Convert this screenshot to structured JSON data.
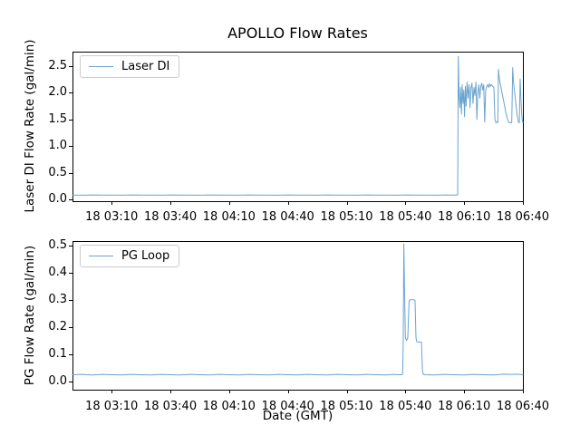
{
  "figure": {
    "title": "APOLLO Flow Rates",
    "xlabel": "Date (GMT)",
    "background": "#ffffff",
    "axis_color": "#000000",
    "line_color": "#6aa3cf"
  },
  "chart_data": [
    {
      "type": "line",
      "subplot": "top",
      "ylabel": "Laser DI Flow Rate (gal/min)",
      "legend": {
        "position": "upper left",
        "entries": [
          "Laser DI"
        ]
      },
      "x_unit": "minutes relative to tick 18 03:10 (GMT)",
      "x_tick_labels": [
        "18 03:10",
        "18 03:40",
        "18 04:10",
        "18 04:40",
        "18 05:10",
        "18 05:40",
        "18 06:10",
        "18 06:40"
      ],
      "x_ticks": [
        0,
        30,
        60,
        90,
        120,
        150,
        180,
        210
      ],
      "xlim": [
        -20,
        210
      ],
      "y_tick_labels": [
        "0.0",
        "0.5",
        "1.0",
        "1.5",
        "2.0",
        "2.5"
      ],
      "y_ticks": [
        0,
        0.5,
        1,
        1.5,
        2,
        2.5
      ],
      "ylim": [
        -0.03,
        2.77
      ],
      "grid": false,
      "series": [
        {
          "name": "Laser DI",
          "points": [
            [
              -20,
              0.085
            ],
            [
              -15,
              0.083
            ],
            [
              -10,
              0.086
            ],
            [
              -5,
              0.084
            ],
            [
              0,
              0.085
            ],
            [
              5,
              0.083
            ],
            [
              10,
              0.086
            ],
            [
              15,
              0.084
            ],
            [
              20,
              0.085
            ],
            [
              25,
              0.083
            ],
            [
              30,
              0.086
            ],
            [
              35,
              0.084
            ],
            [
              40,
              0.085
            ],
            [
              45,
              0.083
            ],
            [
              50,
              0.086
            ],
            [
              55,
              0.084
            ],
            [
              60,
              0.085
            ],
            [
              65,
              0.083
            ],
            [
              70,
              0.086
            ],
            [
              75,
              0.084
            ],
            [
              80,
              0.085
            ],
            [
              85,
              0.083
            ],
            [
              90,
              0.086
            ],
            [
              95,
              0.084
            ],
            [
              100,
              0.085
            ],
            [
              105,
              0.083
            ],
            [
              110,
              0.086
            ],
            [
              115,
              0.084
            ],
            [
              120,
              0.085
            ],
            [
              125,
              0.083
            ],
            [
              130,
              0.086
            ],
            [
              135,
              0.084
            ],
            [
              140,
              0.085
            ],
            [
              145,
              0.083
            ],
            [
              150,
              0.086
            ],
            [
              155,
              0.084
            ],
            [
              160,
              0.085
            ],
            [
              165,
              0.083
            ],
            [
              170,
              0.086
            ],
            [
              174,
              0.084
            ],
            [
              176.4,
              0.086
            ],
            [
              176.7,
              0.09
            ],
            [
              177.0,
              2.68
            ],
            [
              177.4,
              1.95
            ],
            [
              177.8,
              1.72
            ],
            [
              178.2,
              2.1
            ],
            [
              178.6,
              1.6
            ],
            [
              179.0,
              2.15
            ],
            [
              179.4,
              1.8
            ],
            [
              179.8,
              2.05
            ],
            [
              180.2,
              1.55
            ],
            [
              180.6,
              2.12
            ],
            [
              181.0,
              1.75
            ],
            [
              181.5,
              2.2
            ],
            [
              182.0,
              1.9
            ],
            [
              182.5,
              2.15
            ],
            [
              183.0,
              1.72
            ],
            [
              183.5,
              2.1
            ],
            [
              184.0,
              2.18
            ],
            [
              184.5,
              1.8
            ],
            [
              185.0,
              2.1
            ],
            [
              185.5,
              1.95
            ],
            [
              186.0,
              2.2
            ],
            [
              186.5,
              1.5
            ],
            [
              187.0,
              2.0
            ],
            [
              187.5,
              2.15
            ],
            [
              188.0,
              1.9
            ],
            [
              188.5,
              2.12
            ],
            [
              189.0,
              2.18
            ],
            [
              189.5,
              2.05
            ],
            [
              190.0,
              2.15
            ],
            [
              190.5,
              1.45
            ],
            [
              191.0,
              2.05
            ],
            [
              191.5,
              2.12
            ],
            [
              192.0,
              2.15
            ],
            [
              192.5,
              2.1
            ],
            [
              193.0,
              2.17
            ],
            [
              193.5,
              2.12
            ],
            [
              194.0,
              2.15
            ],
            [
              194.6,
              2.12
            ],
            [
              195.2,
              2.1
            ],
            [
              195.7,
              1.5
            ],
            [
              196.2,
              1.44
            ],
            [
              196.8,
              1.46
            ],
            [
              197.2,
              1.44
            ],
            [
              197.5,
              2.44
            ],
            [
              198.0,
              2.25
            ],
            [
              198.8,
              2.1
            ],
            [
              199.6,
              1.95
            ],
            [
              200.4,
              1.8
            ],
            [
              201.2,
              1.65
            ],
            [
              202.0,
              1.52
            ],
            [
              202.9,
              1.44
            ],
            [
              203.6,
              1.44
            ],
            [
              204.3,
              1.44
            ],
            [
              204.8,
              2.47
            ],
            [
              205.2,
              2.2
            ],
            [
              205.8,
              2.0
            ],
            [
              206.4,
              1.8
            ],
            [
              207.0,
              1.6
            ],
            [
              207.7,
              1.45
            ],
            [
              208.2,
              1.44
            ],
            [
              208.6,
              2.26
            ],
            [
              209.0,
              1.9
            ],
            [
              209.4,
              1.6
            ],
            [
              209.7,
              1.48
            ],
            [
              210,
              1.44
            ]
          ]
        }
      ]
    },
    {
      "type": "line",
      "subplot": "bottom",
      "ylabel": "PG Flow Rate (gal/min)",
      "legend": {
        "position": "upper left",
        "entries": [
          "PG Loop"
        ]
      },
      "x_unit": "minutes relative to tick 18 03:10 (GMT)",
      "x_tick_labels": [
        "18 03:10",
        "18 03:40",
        "18 04:10",
        "18 04:40",
        "18 05:10",
        "18 05:40",
        "18 06:10",
        "18 06:40"
      ],
      "x_ticks": [
        0,
        30,
        60,
        90,
        120,
        150,
        180,
        210
      ],
      "xlim": [
        -20,
        210
      ],
      "y_tick_labels": [
        "0.0",
        "0.1",
        "0.2",
        "0.3",
        "0.4",
        "0.5"
      ],
      "y_ticks": [
        0,
        0.1,
        0.2,
        0.3,
        0.4,
        0.5
      ],
      "ylim": [
        -0.03,
        0.515
      ],
      "grid": false,
      "series": [
        {
          "name": "PG Loop",
          "points": [
            [
              -20,
              0.025
            ],
            [
              -15,
              0.026
            ],
            [
              -10,
              0.024
            ],
            [
              -5,
              0.026
            ],
            [
              0,
              0.025
            ],
            [
              5,
              0.024
            ],
            [
              10,
              0.026
            ],
            [
              15,
              0.025
            ],
            [
              20,
              0.024
            ],
            [
              25,
              0.026
            ],
            [
              30,
              0.025
            ],
            [
              35,
              0.024
            ],
            [
              40,
              0.026
            ],
            [
              45,
              0.025
            ],
            [
              50,
              0.024
            ],
            [
              55,
              0.026
            ],
            [
              60,
              0.025
            ],
            [
              65,
              0.024
            ],
            [
              70,
              0.026
            ],
            [
              75,
              0.025
            ],
            [
              80,
              0.024
            ],
            [
              85,
              0.026
            ],
            [
              90,
              0.025
            ],
            [
              95,
              0.024
            ],
            [
              100,
              0.026
            ],
            [
              105,
              0.025
            ],
            [
              110,
              0.024
            ],
            [
              115,
              0.026
            ],
            [
              120,
              0.025
            ],
            [
              125,
              0.024
            ],
            [
              130,
              0.026
            ],
            [
              135,
              0.025
            ],
            [
              140,
              0.024
            ],
            [
              144,
              0.026
            ],
            [
              146,
              0.025
            ],
            [
              148.2,
              0.025
            ],
            [
              148.6,
              0.026
            ],
            [
              148.9,
              0.15
            ],
            [
              149.2,
              0.505
            ],
            [
              149.6,
              0.32
            ],
            [
              150.0,
              0.16
            ],
            [
              150.6,
              0.15
            ],
            [
              151.2,
              0.16
            ],
            [
              151.9,
              0.295
            ],
            [
              152.4,
              0.3
            ],
            [
              154.0,
              0.3
            ],
            [
              154.9,
              0.298
            ],
            [
              155.4,
              0.16
            ],
            [
              155.8,
              0.146
            ],
            [
              157.0,
              0.145
            ],
            [
              158.2,
              0.144
            ],
            [
              158.7,
              0.04
            ],
            [
              159.2,
              0.026
            ],
            [
              160,
              0.025
            ],
            [
              165,
              0.024
            ],
            [
              170,
              0.026
            ],
            [
              175,
              0.025
            ],
            [
              180,
              0.024
            ],
            [
              185,
              0.026
            ],
            [
              190,
              0.025
            ],
            [
              195,
              0.024
            ],
            [
              200,
              0.027
            ],
            [
              204,
              0.026
            ],
            [
              207,
              0.027
            ],
            [
              210,
              0.025
            ]
          ]
        }
      ]
    }
  ]
}
